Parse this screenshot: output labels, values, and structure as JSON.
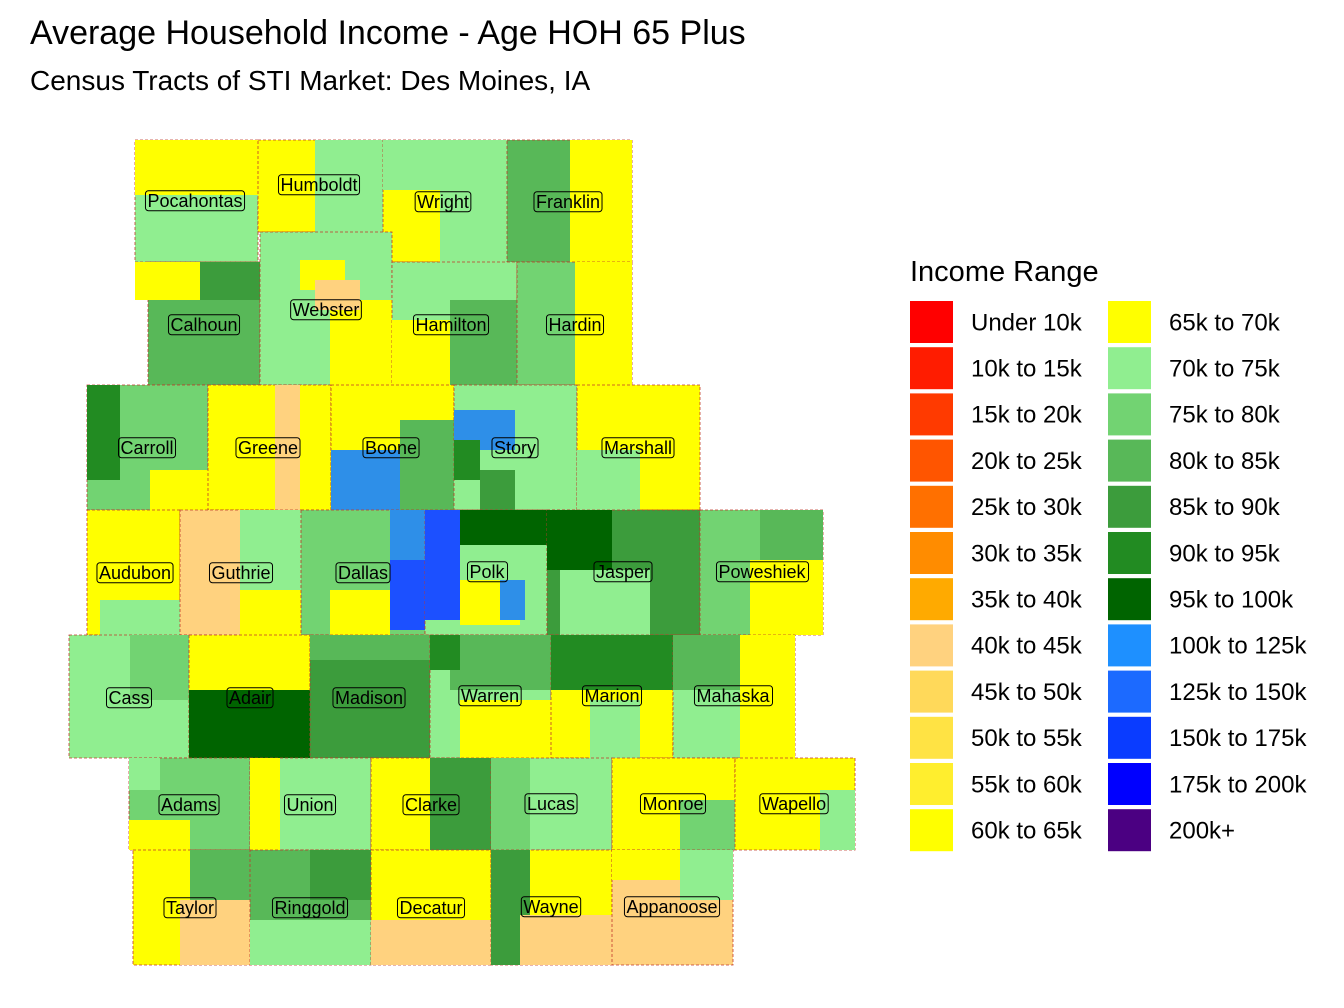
{
  "title": "Average Household Income - Age HOH 65 Plus",
  "subtitle": "Census Tracts of STI Market: Des Moines, IA",
  "legend": {
    "title": "Income Range",
    "items": [
      {
        "label": "Under 10k",
        "color": "#ff0000"
      },
      {
        "label": "10k to 15k",
        "color": "#ff1c00"
      },
      {
        "label": "15k to 20k",
        "color": "#ff3a00"
      },
      {
        "label": "20k to 25k",
        "color": "#ff5500"
      },
      {
        "label": "25k to 30k",
        "color": "#ff7000"
      },
      {
        "label": "30k to 35k",
        "color": "#ff8c00"
      },
      {
        "label": "35k to 40k",
        "color": "#ffaa00"
      },
      {
        "label": "40k to 45k",
        "color": "#ffd27f"
      },
      {
        "label": "45k to 50k",
        "color": "#ffd95a"
      },
      {
        "label": "50k to 55k",
        "color": "#ffe344"
      },
      {
        "label": "55k to 60k",
        "color": "#ffee2e"
      },
      {
        "label": "60k to 65k",
        "color": "#ffff00"
      },
      {
        "label": "65k to 70k",
        "color": "#ffff00"
      },
      {
        "label": "70k to 75k",
        "color": "#90ee90"
      },
      {
        "label": "75k to 80k",
        "color": "#72d372"
      },
      {
        "label": "80k to 85k",
        "color": "#58b858"
      },
      {
        "label": "85k to 90k",
        "color": "#3c9c3c"
      },
      {
        "label": "90k to 95k",
        "color": "#228b22"
      },
      {
        "label": "95k to 100k",
        "color": "#006400"
      },
      {
        "label": "100k to 125k",
        "color": "#1e90ff"
      },
      {
        "label": "125k to 150k",
        "color": "#1c6aff"
      },
      {
        "label": "150k to 175k",
        "color": "#0a3cff"
      },
      {
        "label": "175k to 200k",
        "color": "#0000ff"
      },
      {
        "label": "200k+",
        "color": "#4b0082"
      }
    ]
  },
  "counties": [
    {
      "name": "Pocahontas"
    },
    {
      "name": "Humboldt"
    },
    {
      "name": "Wright"
    },
    {
      "name": "Franklin"
    },
    {
      "name": "Calhoun"
    },
    {
      "name": "Webster"
    },
    {
      "name": "Hamilton"
    },
    {
      "name": "Hardin"
    },
    {
      "name": "Carroll"
    },
    {
      "name": "Greene"
    },
    {
      "name": "Boone"
    },
    {
      "name": "Story"
    },
    {
      "name": "Marshall"
    },
    {
      "name": "Audubon"
    },
    {
      "name": "Guthrie"
    },
    {
      "name": "Dallas"
    },
    {
      "name": "Polk"
    },
    {
      "name": "Jasper"
    },
    {
      "name": "Poweshiek"
    },
    {
      "name": "Cass"
    },
    {
      "name": "Adair"
    },
    {
      "name": "Madison"
    },
    {
      "name": "Warren"
    },
    {
      "name": "Marion"
    },
    {
      "name": "Mahaska"
    },
    {
      "name": "Adams"
    },
    {
      "name": "Union"
    },
    {
      "name": "Clarke"
    },
    {
      "name": "Lucas"
    },
    {
      "name": "Monroe"
    },
    {
      "name": "Wapello"
    },
    {
      "name": "Taylor"
    },
    {
      "name": "Ringgold"
    },
    {
      "name": "Decatur"
    },
    {
      "name": "Wayne"
    },
    {
      "name": "Appanoose"
    }
  ]
}
